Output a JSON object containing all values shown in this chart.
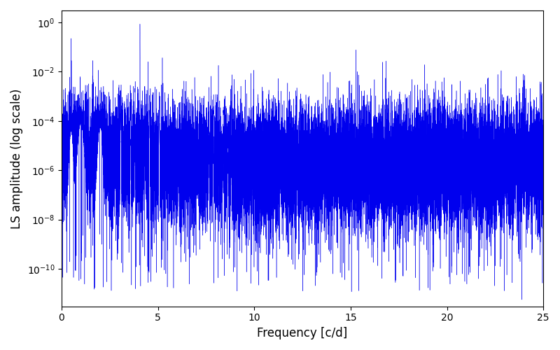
{
  "title": "",
  "xlabel": "Frequency [c/d]",
  "ylabel": "LS amplitude (log scale)",
  "xlim": [
    0,
    25
  ],
  "ylim_bottom": 3e-12,
  "ylim_top": 3.0,
  "line_color": "#0000ee",
  "background_color": "#ffffff",
  "freq_max": 25.0,
  "n_points": 20000,
  "seed": 12345,
  "peak1_freq": 4.07,
  "peak1_amp": 0.85,
  "peak2_freq": 8.14,
  "peak2_amp": 0.018,
  "peak3_freq": 12.21,
  "peak3_amp": 0.0022,
  "noise_base_log": -5.8,
  "figsize": [
    8.0,
    5.0
  ],
  "dpi": 100
}
